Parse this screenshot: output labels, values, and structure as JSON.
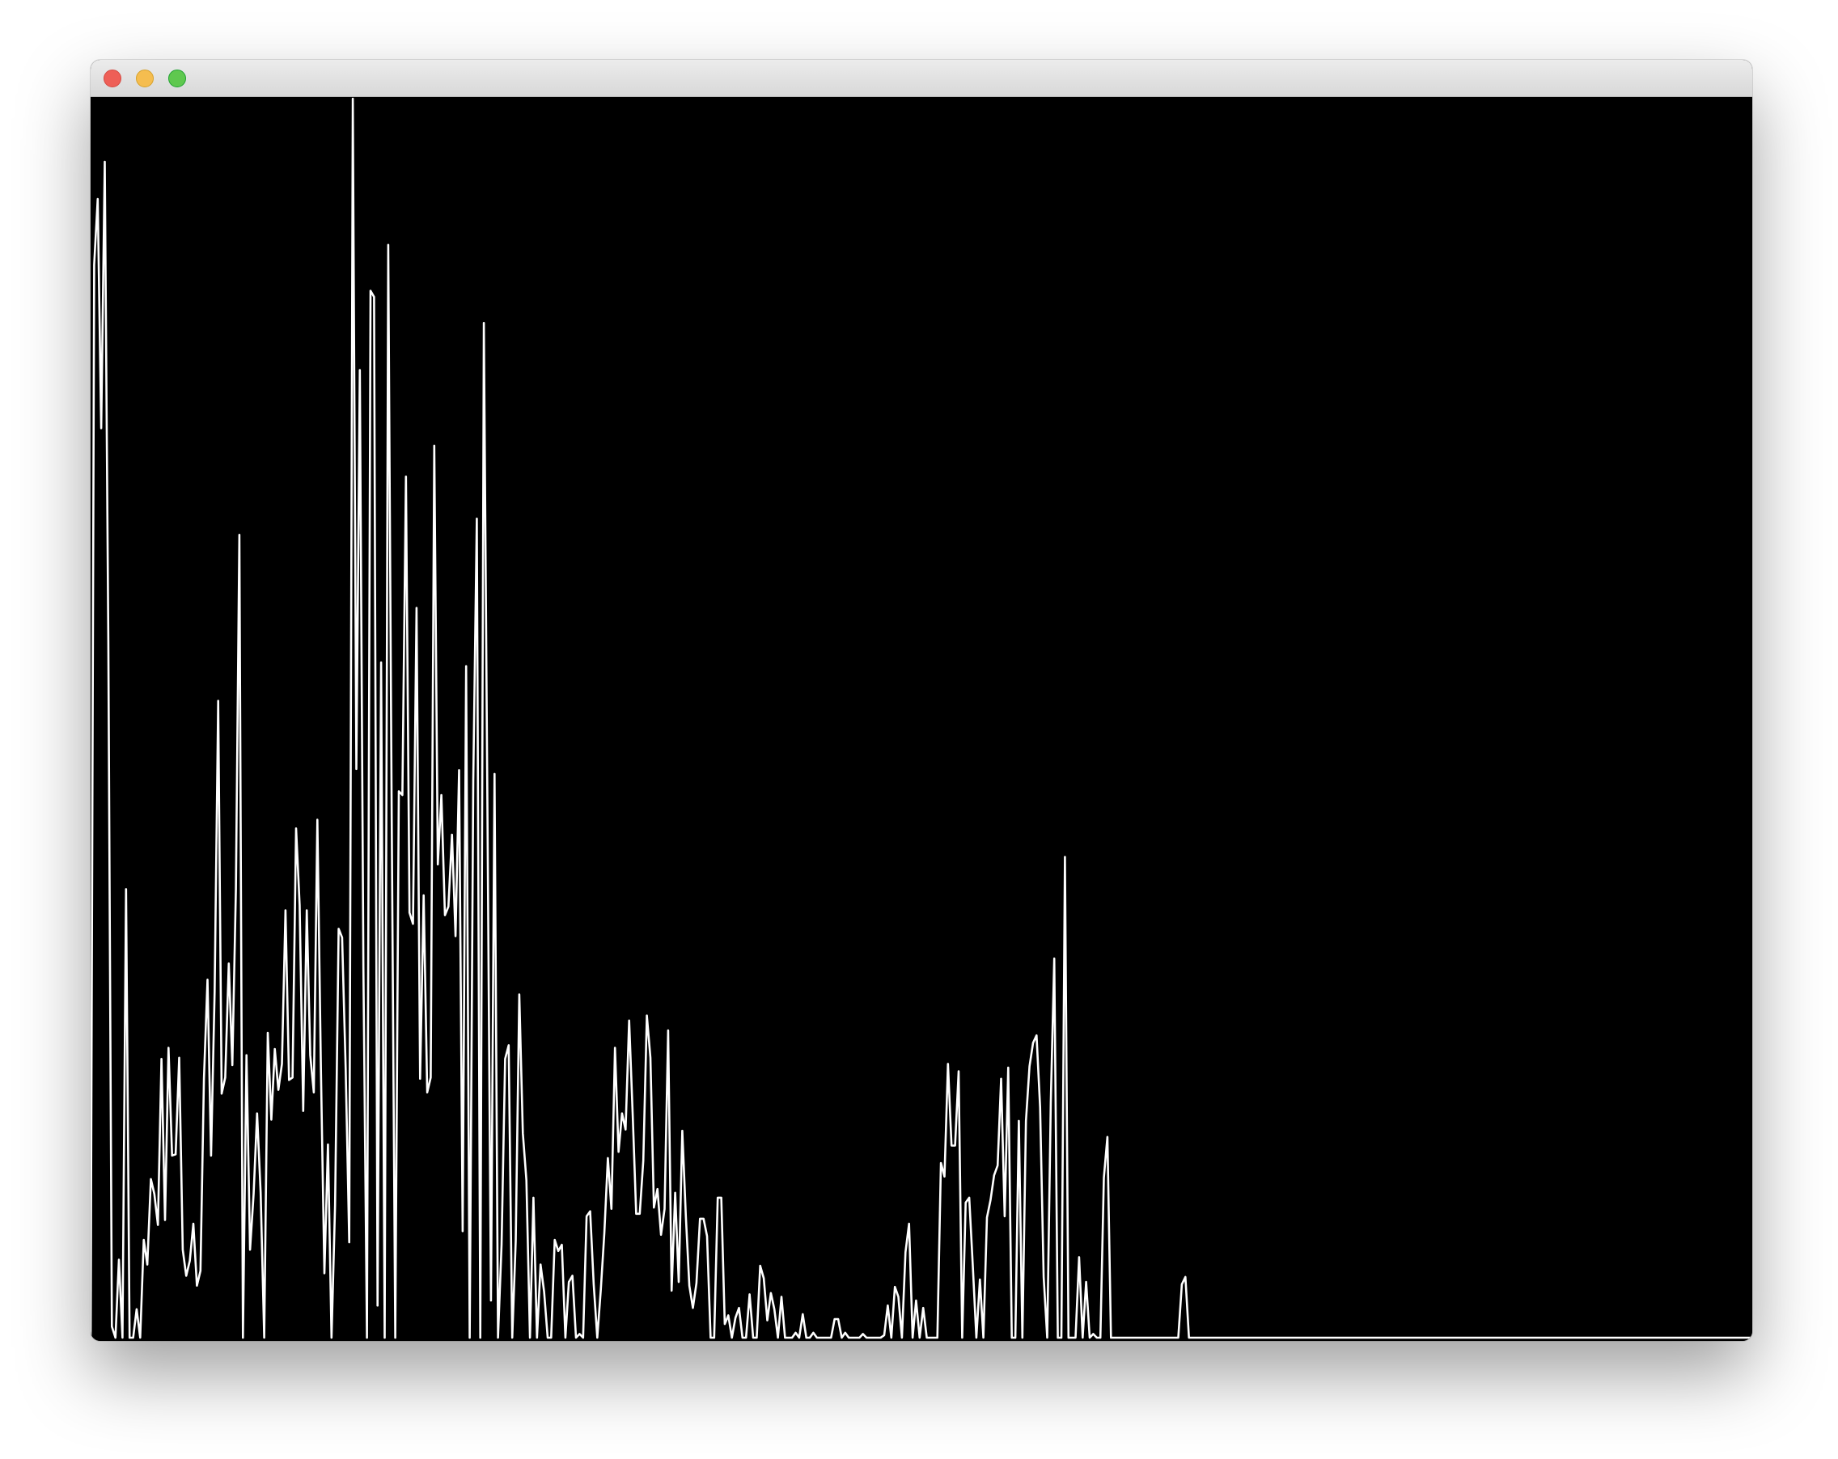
{
  "window": {
    "buttons": [
      {
        "name": "close",
        "color": "#ee5f57"
      },
      {
        "name": "minimize",
        "color": "#f5bd4f"
      },
      {
        "name": "maximize",
        "color": "#5fc84f"
      }
    ]
  },
  "canvas": {
    "background": "#000000",
    "stroke": "#ffffff",
    "signal_max": 1000,
    "signal": [
      0,
      866,
      919,
      734,
      949,
      562,
      9,
      0,
      63,
      0,
      362,
      0,
      0,
      23,
      0,
      79,
      59,
      128,
      116,
      91,
      225,
      95,
      234,
      147,
      148,
      226,
      71,
      50,
      62,
      92,
      42,
      54,
      209,
      289,
      147,
      279,
      514,
      197,
      210,
      302,
      220,
      362,
      648,
      0,
      228,
      71,
      116,
      181,
      117,
      0,
      246,
      176,
      233,
      200,
      221,
      345,
      208,
      210,
      411,
      349,
      183,
      345,
      228,
      198,
      418,
      216,
      52,
      156,
      0,
      107,
      330,
      323,
      217,
      77,
      1000,
      459,
      781,
      299,
      0,
      845,
      840,
      26,
      545,
      0,
      882,
      410,
      0,
      441,
      438,
      695,
      343,
      334,
      589,
      209,
      357,
      198,
      210,
      720,
      382,
      438,
      341,
      348,
      406,
      324,
      458,
      86,
      542,
      0,
      449,
      661,
      0,
      819,
      430,
      30,
      455,
      0,
      75,
      225,
      236,
      0,
      78,
      277,
      165,
      127,
      0,
      113,
      0,
      59,
      37,
      0,
      0,
      79,
      70,
      75,
      0,
      45,
      50,
      0,
      3,
      0,
      98,
      102,
      43,
      0,
      39,
      84,
      145,
      104,
      234,
      150,
      181,
      168,
      256,
      180,
      100,
      100,
      143,
      260,
      226,
      105,
      120,
      83,
      104,
      248,
      38,
      117,
      45,
      167,
      98,
      42,
      24,
      44,
      96,
      96,
      82,
      0,
      0,
      113,
      113,
      11,
      18,
      0,
      16,
      24,
      0,
      0,
      35,
      0,
      0,
      58,
      48,
      14,
      36,
      23,
      0,
      33,
      0,
      0,
      0,
      4,
      0,
      19,
      0,
      0,
      4,
      0,
      0,
      0,
      0,
      0,
      15,
      15,
      0,
      4,
      0,
      0,
      0,
      0,
      3,
      0,
      0,
      0,
      0,
      0,
      2,
      26,
      0,
      41,
      33,
      0,
      69,
      92,
      0,
      30,
      0,
      24,
      0,
      0,
      0,
      0,
      141,
      130,
      221,
      155,
      155,
      215,
      0,
      109,
      113,
      58,
      0,
      47,
      0,
      97,
      111,
      131,
      139,
      209,
      98,
      218,
      0,
      0,
      175,
      0,
      175,
      219,
      238,
      244,
      186,
      49,
      0,
      190,
      306,
      0,
      0,
      388,
      0,
      0,
      0,
      65,
      0,
      45,
      0,
      3,
      0,
      0,
      129,
      162,
      0,
      0,
      0,
      0,
      0,
      0,
      0,
      0,
      0,
      0,
      0,
      0,
      0,
      0,
      0,
      0,
      0,
      0,
      0,
      0,
      43,
      49,
      0,
      0,
      0,
      0,
      0,
      0,
      0,
      0,
      0,
      0,
      0,
      0,
      0,
      0,
      0,
      0,
      0,
      0,
      0,
      0,
      0,
      0,
      0,
      0,
      0,
      0,
      0,
      0,
      0,
      0,
      0,
      0,
      0,
      0,
      0,
      0,
      0,
      0,
      0,
      0,
      0,
      0,
      0,
      0,
      0,
      0,
      0,
      0,
      0,
      0,
      0,
      0,
      0,
      0,
      0,
      0,
      0,
      0,
      0,
      0,
      0,
      0,
      0,
      0,
      0,
      0,
      0,
      0,
      0,
      0,
      0,
      0,
      0,
      0,
      0,
      0,
      0,
      0,
      0,
      0,
      0,
      0,
      0,
      0,
      0,
      0,
      0,
      0,
      0,
      0,
      0,
      0,
      0,
      0,
      0,
      0,
      0,
      0,
      0,
      0,
      0,
      0,
      0,
      0,
      0,
      0,
      0,
      0,
      0,
      0,
      0,
      0,
      0,
      0,
      0,
      0,
      0,
      0,
      0,
      0,
      0,
      0,
      0,
      0,
      0,
      0,
      0,
      0,
      0,
      0,
      0,
      0,
      0,
      0,
      0,
      0,
      0,
      0,
      0,
      0,
      0,
      0,
      0,
      0,
      0,
      0,
      0,
      0,
      0,
      0,
      0,
      0,
      0,
      0,
      0,
      0,
      0,
      0,
      0,
      0,
      0,
      0,
      0,
      0,
      0,
      0,
      0,
      0,
      0,
      0,
      0,
      0,
      0,
      0,
      0,
      0,
      0,
      0,
      0,
      0,
      0,
      0,
      0,
      0,
      0,
      0,
      0,
      0,
      0,
      0,
      0,
      0,
      0,
      0
    ]
  }
}
